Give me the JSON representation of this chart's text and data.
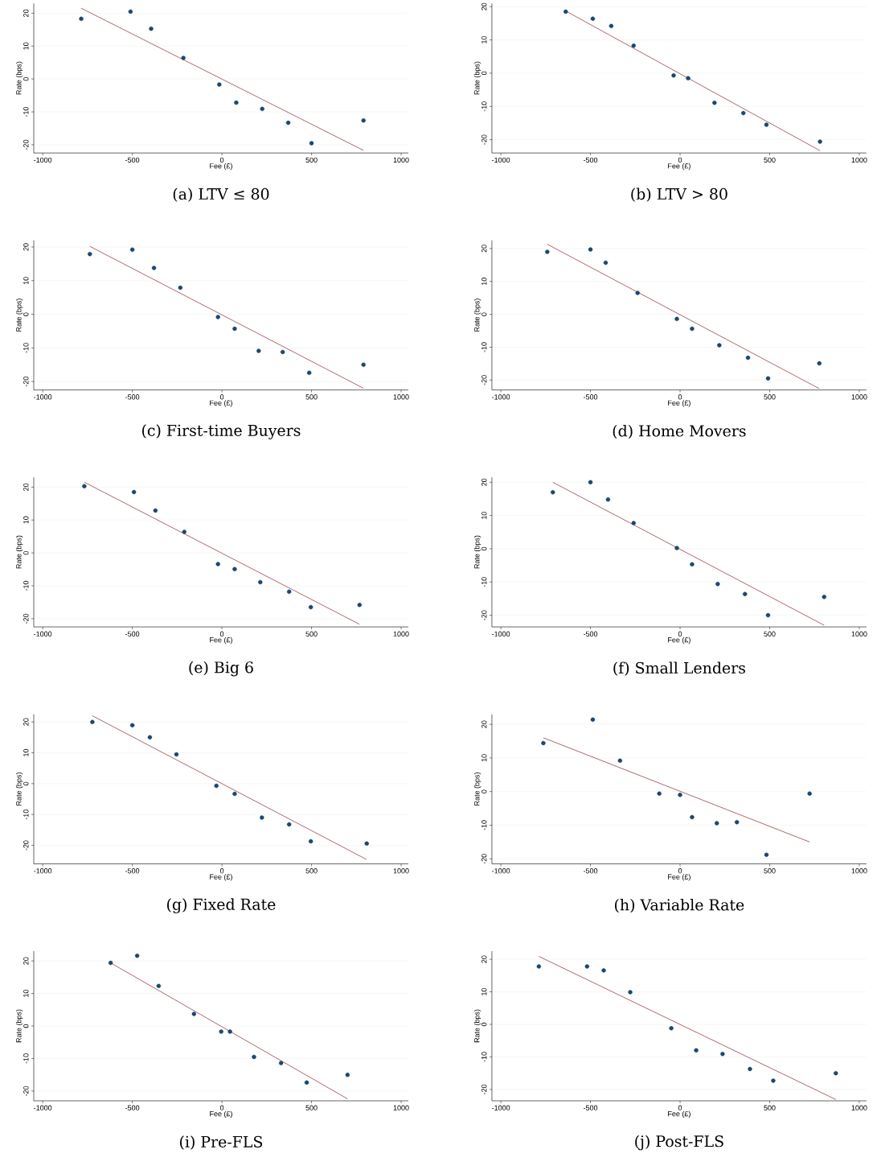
{
  "chart_data": [
    {
      "type": "scatter",
      "title": "(a) LTV ≤ 80",
      "xlabel": "Fee (£)",
      "ylabel": "Rate (bps)",
      "xlim": [
        -1050,
        1040
      ],
      "ylim": [
        -22.5,
        23
      ],
      "xticks": [
        -1000,
        -500,
        0,
        500,
        1000
      ],
      "yticks": [
        -20,
        -10,
        0,
        10,
        20
      ],
      "grid": "y",
      "series": [
        {
          "type": "scatter",
          "color": "#1a476f",
          "x": [
            -785,
            -510,
            -395,
            -215,
            -15,
            80,
            225,
            370,
            500,
            790
          ],
          "values": [
            18.3,
            20.5,
            15.3,
            6.4,
            -1.7,
            -7.2,
            -9.1,
            -13.3,
            -19.5,
            -12.6
          ]
        },
        {
          "type": "line",
          "color": "#90353b",
          "marker": "none",
          "x": [
            -785,
            790
          ],
          "values": [
            21.5,
            -21.7
          ]
        }
      ]
    },
    {
      "type": "scatter",
      "title": "(b) LTV > 80",
      "xlabel": "Fee (£)",
      "ylabel": "Rate (bps)",
      "xlim": [
        -1050,
        1040
      ],
      "ylim": [
        -24,
        21
      ],
      "xticks": [
        -1000,
        -500,
        0,
        500,
        1000
      ],
      "yticks": [
        -20,
        -10,
        0,
        10,
        20
      ],
      "grid": "y",
      "series": [
        {
          "type": "scatter",
          "color": "#1a476f",
          "x": [
            -638,
            -487,
            -384,
            -259,
            -36,
            45,
            192,
            353,
            482,
            781
          ],
          "values": [
            18.5,
            16.4,
            14.2,
            8.3,
            -0.7,
            -1.5,
            -8.9,
            -12.0,
            -15.5,
            -20.6
          ]
        },
        {
          "type": "line",
          "color": "#90353b",
          "marker": "none",
          "x": [
            -638,
            781
          ],
          "values": [
            18.7,
            -23.3
          ]
        }
      ]
    },
    {
      "type": "scatter",
      "title": "(c) First-time Buyers",
      "xlabel": "Fee (£)",
      "ylabel": "Rate (bps)",
      "xlim": [
        -1050,
        1040
      ],
      "ylim": [
        -22.5,
        22
      ],
      "xticks": [
        -1000,
        -500,
        0,
        500,
        1000
      ],
      "yticks": [
        -20,
        -10,
        0,
        10,
        20
      ],
      "grid": "y",
      "series": [
        {
          "type": "scatter",
          "color": "#1a476f",
          "x": [
            -737,
            -500,
            -379,
            -232,
            -22,
            71,
            205,
            339,
            487,
            790
          ],
          "values": [
            17.9,
            19.2,
            13.8,
            7.9,
            -0.8,
            -4.3,
            -10.9,
            -11.2,
            -17.4,
            -15.0
          ]
        },
        {
          "type": "line",
          "color": "#90353b",
          "marker": "none",
          "x": [
            -737,
            790
          ],
          "values": [
            20.2,
            -22.0
          ]
        }
      ]
    },
    {
      "type": "scatter",
      "title": "(d) Home Movers",
      "xlabel": "Fee (£)",
      "ylabel": "Rate (bps)",
      "xlim": [
        -1050,
        1040
      ],
      "ylim": [
        -23,
        22.5
      ],
      "xticks": [
        -1000,
        -500,
        0,
        500,
        1000
      ],
      "yticks": [
        -20,
        -10,
        0,
        10,
        20
      ],
      "grid": "y",
      "series": [
        {
          "type": "scatter",
          "color": "#1a476f",
          "x": [
            -741,
            -500,
            -415,
            -237,
            -18,
            67,
            219,
            379,
            491,
            777
          ],
          "values": [
            19.0,
            19.7,
            15.7,
            6.5,
            -1.4,
            -4.4,
            -9.4,
            -13.2,
            -19.5,
            -14.9
          ]
        },
        {
          "type": "line",
          "color": "#90353b",
          "marker": "none",
          "x": [
            -741,
            777
          ],
          "values": [
            21.3,
            -22.6
          ]
        }
      ]
    },
    {
      "type": "scatter",
      "title": "(e) Big 6",
      "xlabel": "Fee (£)",
      "ylabel": "Rate (bps)",
      "xlim": [
        -1050,
        1040
      ],
      "ylim": [
        -22.5,
        23
      ],
      "xticks": [
        -1000,
        -500,
        0,
        500,
        1000
      ],
      "yticks": [
        -20,
        -10,
        0,
        10,
        20
      ],
      "grid": "y",
      "series": [
        {
          "type": "scatter",
          "color": "#1a476f",
          "x": [
            -768,
            -491,
            -371,
            -210,
            -22,
            71,
            214,
            375,
            496,
            768
          ],
          "values": [
            20.3,
            18.5,
            12.9,
            6.4,
            -3.4,
            -4.9,
            -8.9,
            -11.8,
            -16.5,
            -15.8
          ]
        },
        {
          "type": "line",
          "color": "#90353b",
          "marker": "none",
          "x": [
            -768,
            768
          ],
          "values": [
            21.5,
            -21.7
          ]
        }
      ]
    },
    {
      "type": "scatter",
      "title": "(f) Small Lenders",
      "xlabel": "Fee (£)",
      "ylabel": "Rate (bps)",
      "xlim": [
        -1050,
        1040
      ],
      "ylim": [
        -23.5,
        21.5
      ],
      "xticks": [
        -1000,
        -500,
        0,
        500,
        1000
      ],
      "yticks": [
        -20,
        -10,
        0,
        10,
        20
      ],
      "grid": "y",
      "series": [
        {
          "type": "scatter",
          "color": "#1a476f",
          "x": [
            -710,
            -500,
            -402,
            -259,
            -18,
            67,
            210,
            362,
            491,
            804
          ],
          "values": [
            17.0,
            20.0,
            14.8,
            7.7,
            0.2,
            -4.7,
            -10.6,
            -13.6,
            -20.0,
            -14.5
          ]
        },
        {
          "type": "line",
          "color": "#90353b",
          "marker": "none",
          "x": [
            -710,
            804
          ],
          "values": [
            20.0,
            -23.0
          ]
        }
      ]
    },
    {
      "type": "scatter",
      "title": "(g) Fixed Rate",
      "xlabel": "Fee (£)",
      "ylabel": "Rate (bps)",
      "xlim": [
        -1050,
        1040
      ],
      "ylim": [
        -26,
        22.5
      ],
      "xticks": [
        -1000,
        -500,
        0,
        500,
        1000
      ],
      "yticks": [
        -20,
        -10,
        0,
        10,
        20
      ],
      "grid": "y",
      "series": [
        {
          "type": "scatter",
          "color": "#1a476f",
          "x": [
            -723,
            -500,
            -402,
            -254,
            -31,
            71,
            223,
            375,
            496,
            808
          ],
          "values": [
            20.0,
            18.9,
            15.0,
            9.5,
            -0.7,
            -3.3,
            -11.0,
            -13.2,
            -18.7,
            -19.4
          ]
        },
        {
          "type": "line",
          "color": "#90353b",
          "marker": "none",
          "x": [
            -723,
            808
          ],
          "values": [
            22.0,
            -24.6
          ]
        }
      ]
    },
    {
      "type": "scatter",
      "title": "(h) Variable Rate",
      "xlabel": "Fee (£)",
      "ylabel": "Rate (bps)",
      "xlim": [
        -1050,
        1040
      ],
      "ylim": [
        -21.5,
        23
      ],
      "xticks": [
        -1000,
        -500,
        0,
        500,
        1000
      ],
      "yticks": [
        -20,
        -10,
        0,
        10,
        20
      ],
      "grid": "y",
      "series": [
        {
          "type": "scatter",
          "color": "#1a476f",
          "x": [
            -763,
            -487,
            -335,
            -116,
            0,
            67,
            205,
            317,
            482,
            723
          ],
          "values": [
            14.4,
            21.4,
            9.2,
            -0.6,
            -1.0,
            -7.6,
            -9.4,
            -9.1,
            -18.8,
            -0.6
          ]
        },
        {
          "type": "line",
          "color": "#90353b",
          "marker": "none",
          "x": [
            -763,
            723
          ],
          "values": [
            16.0,
            -15.0
          ]
        }
      ]
    },
    {
      "type": "scatter",
      "title": "(i) Pre-FLS",
      "xlabel": "Fee (£)",
      "ylabel": "Rate (bps)",
      "xlim": [
        -1050,
        1040
      ],
      "ylim": [
        -23,
        23
      ],
      "xticks": [
        -1000,
        -500,
        0,
        500,
        1000
      ],
      "yticks": [
        -20,
        -10,
        0,
        10,
        20
      ],
      "grid": "y",
      "series": [
        {
          "type": "scatter",
          "color": "#1a476f",
          "x": [
            -621,
            -473,
            -353,
            -156,
            -4,
            45,
            179,
            330,
            473,
            701
          ],
          "values": [
            19.4,
            21.6,
            12.3,
            3.7,
            -1.7,
            -1.7,
            -9.5,
            -11.4,
            -17.4,
            -15.0
          ]
        },
        {
          "type": "line",
          "color": "#90353b",
          "marker": "none",
          "x": [
            -621,
            701
          ],
          "values": [
            19.4,
            -22.4
          ]
        }
      ]
    },
    {
      "type": "scatter",
      "title": "(j) Post-FLS",
      "xlabel": "Fee (£)",
      "ylabel": "Rate (bps)",
      "xlim": [
        -1050,
        1040
      ],
      "ylim": [
        -23.5,
        22.5
      ],
      "xticks": [
        -1000,
        -500,
        0,
        500,
        1000
      ],
      "yticks": [
        -20,
        -10,
        0,
        10,
        20
      ],
      "grid": "y",
      "series": [
        {
          "type": "scatter",
          "color": "#1a476f",
          "x": [
            -788,
            -519,
            -426,
            -278,
            -49,
            90,
            237,
            390,
            520,
            869
          ],
          "values": [
            17.8,
            17.8,
            16.6,
            9.9,
            -1.2,
            -8.0,
            -9.1,
            -13.7,
            -17.3,
            -15.0
          ]
        },
        {
          "type": "line",
          "color": "#90353b",
          "marker": "none",
          "x": [
            -788,
            869
          ],
          "values": [
            20.9,
            -23.1
          ]
        }
      ]
    }
  ]
}
